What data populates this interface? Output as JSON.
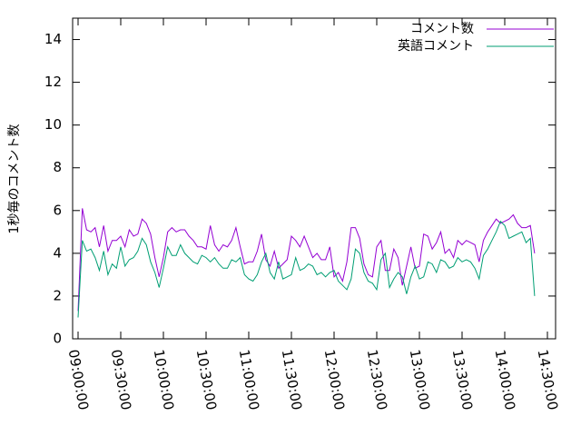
{
  "chart_data": {
    "type": "line",
    "ylabel": "1秒毎のコメント数",
    "x": [
      "09:00:00",
      "09:03:00",
      "09:06:00",
      "09:09:00",
      "09:12:00",
      "09:15:00",
      "09:18:00",
      "09:21:00",
      "09:24:00",
      "09:27:00",
      "09:30:00",
      "09:33:00",
      "09:36:00",
      "09:39:00",
      "09:42:00",
      "09:45:00",
      "09:48:00",
      "09:51:00",
      "09:54:00",
      "09:57:00",
      "10:00:00",
      "10:03:00",
      "10:06:00",
      "10:09:00",
      "10:12:00",
      "10:15:00",
      "10:18:00",
      "10:21:00",
      "10:24:00",
      "10:27:00",
      "10:30:00",
      "10:33:00",
      "10:36:00",
      "10:39:00",
      "10:42:00",
      "10:45:00",
      "10:48:00",
      "10:51:00",
      "10:54:00",
      "10:57:00",
      "11:00:00",
      "11:03:00",
      "11:06:00",
      "11:09:00",
      "11:12:00",
      "11:15:00",
      "11:18:00",
      "11:21:00",
      "11:24:00",
      "11:27:00",
      "11:30:00",
      "11:33:00",
      "11:36:00",
      "11:39:00",
      "11:42:00",
      "11:45:00",
      "11:48:00",
      "11:51:00",
      "11:54:00",
      "11:57:00",
      "12:00:00",
      "12:03:00",
      "12:06:00",
      "12:09:00",
      "12:12:00",
      "12:15:00",
      "12:18:00",
      "12:21:00",
      "12:24:00",
      "12:27:00",
      "12:30:00",
      "12:33:00",
      "12:36:00",
      "12:39:00",
      "12:42:00",
      "12:45:00",
      "12:48:00",
      "12:51:00",
      "12:54:00",
      "12:57:00",
      "13:00:00",
      "13:03:00",
      "13:06:00",
      "13:09:00",
      "13:12:00",
      "13:15:00",
      "13:18:00",
      "13:21:00",
      "13:24:00",
      "13:27:00",
      "13:30:00",
      "13:33:00",
      "13:36:00",
      "13:39:00",
      "13:42:00",
      "13:45:00",
      "13:48:00",
      "13:51:00",
      "13:54:00",
      "13:57:00",
      "14:00:00",
      "14:03:00",
      "14:06:00",
      "14:09:00",
      "14:12:00",
      "14:15:00",
      "14:18:00",
      "14:21:00"
    ],
    "series": [
      {
        "name": "コメント数",
        "color": "#9400d3",
        "values": [
          1.3,
          6.1,
          5.1,
          5.0,
          5.2,
          4.3,
          5.3,
          4.1,
          4.6,
          4.6,
          4.8,
          4.3,
          5.1,
          4.8,
          4.9,
          5.6,
          5.4,
          4.9,
          3.8,
          2.9,
          3.8,
          5.0,
          5.2,
          5.0,
          5.1,
          5.1,
          4.8,
          4.6,
          4.3,
          4.3,
          4.2,
          5.3,
          4.4,
          4.1,
          4.4,
          4.3,
          4.6,
          5.2,
          4.3,
          3.5,
          3.6,
          3.6,
          4.1,
          4.9,
          3.7,
          3.4,
          4.1,
          3.3,
          3.5,
          3.7,
          4.8,
          4.6,
          4.3,
          4.8,
          4.3,
          3.8,
          4.0,
          3.7,
          3.7,
          4.3,
          2.9,
          3.1,
          2.7,
          3.6,
          5.2,
          5.2,
          4.7,
          3.5,
          3.0,
          2.9,
          4.3,
          4.6,
          3.2,
          3.2,
          4.2,
          3.8,
          2.5,
          3.4,
          4.3,
          3.3,
          3.4,
          4.9,
          4.8,
          4.2,
          4.5,
          5.0,
          4.0,
          4.2,
          3.8,
          4.6,
          4.4,
          4.6,
          4.5,
          4.4,
          3.6,
          4.6,
          5.0,
          5.3,
          5.6,
          5.4,
          5.5,
          5.6,
          5.8,
          5.4,
          5.2,
          5.2,
          5.3,
          4.0
        ]
      },
      {
        "name": "英語コメント",
        "color": "#009e73",
        "values": [
          1.0,
          4.6,
          4.1,
          4.2,
          3.8,
          3.2,
          4.1,
          3.0,
          3.5,
          3.3,
          4.3,
          3.4,
          3.7,
          3.8,
          4.1,
          4.7,
          4.4,
          3.6,
          3.1,
          2.4,
          3.3,
          4.3,
          3.9,
          3.9,
          4.4,
          4.0,
          3.8,
          3.6,
          3.5,
          3.9,
          3.8,
          3.6,
          3.8,
          3.5,
          3.3,
          3.3,
          3.7,
          3.6,
          3.8,
          3.0,
          2.8,
          2.7,
          3.0,
          3.6,
          4.0,
          3.1,
          2.8,
          3.6,
          2.8,
          2.9,
          3.0,
          3.8,
          3.2,
          3.3,
          3.5,
          3.4,
          3.0,
          3.1,
          2.9,
          3.1,
          3.2,
          2.7,
          2.5,
          2.3,
          2.8,
          4.2,
          4.0,
          3.1,
          2.7,
          2.6,
          2.3,
          3.7,
          4.0,
          2.4,
          2.8,
          3.1,
          2.9,
          2.1,
          2.9,
          3.4,
          2.8,
          2.9,
          3.6,
          3.5,
          3.1,
          3.7,
          3.6,
          3.3,
          3.4,
          3.8,
          3.6,
          3.7,
          3.6,
          3.3,
          2.8,
          3.9,
          4.2,
          4.6,
          5.0,
          5.5,
          5.3,
          4.7,
          4.8,
          4.9,
          5.0,
          4.5,
          4.7,
          2.0
        ]
      }
    ],
    "xlim": [
      "08:56:10",
      "14:35:45"
    ],
    "xticks": [
      "09:00:00",
      "09:30:00",
      "10:00:00",
      "10:30:00",
      "11:00:00",
      "11:30:00",
      "12:00:00",
      "12:30:00",
      "13:00:00",
      "13:30:00",
      "14:00:00",
      "14:30:00"
    ],
    "ylim": [
      0,
      15
    ],
    "yticks": [
      0,
      2,
      4,
      6,
      8,
      10,
      12,
      14
    ],
    "legend": "top-right",
    "grid": false
  }
}
